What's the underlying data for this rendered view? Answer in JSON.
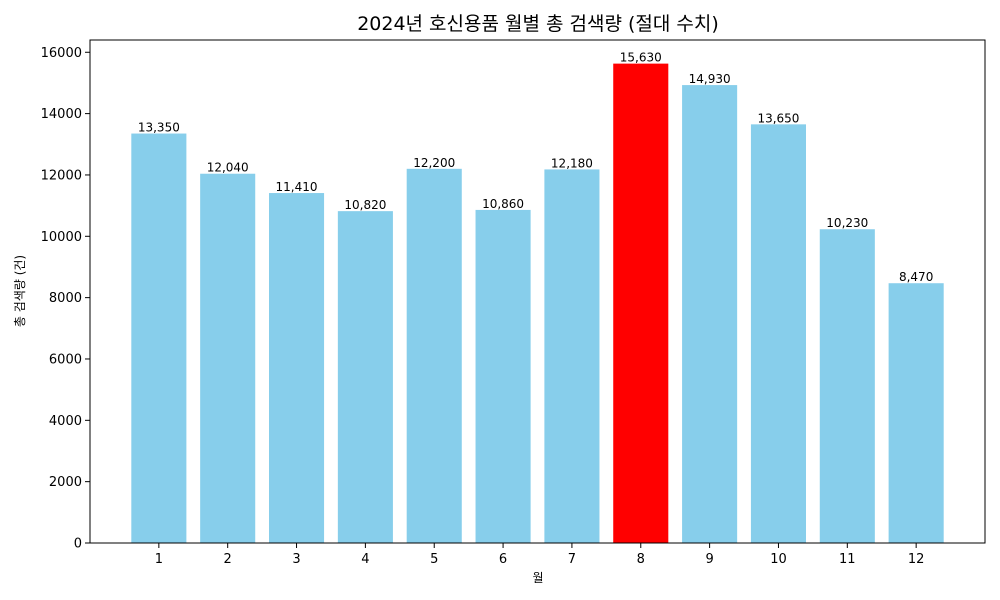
{
  "chart_data": {
    "type": "bar",
    "title": "2024년 호신용품 월별 총 검색량 (절대 수치)",
    "xlabel": "월",
    "ylabel": "총 검색량 (건)",
    "categories": [
      "1",
      "2",
      "3",
      "4",
      "5",
      "6",
      "7",
      "8",
      "9",
      "10",
      "11",
      "12"
    ],
    "values": [
      13350,
      12040,
      11410,
      10820,
      12200,
      10860,
      12180,
      15630,
      14930,
      13650,
      10230,
      8470
    ],
    "value_labels": [
      "13,350",
      "12,040",
      "11,410",
      "10,820",
      "12,200",
      "10,860",
      "12,180",
      "15,630",
      "14,930",
      "13,650",
      "10,230",
      "8,470"
    ],
    "highlight_index": 7,
    "colors": {
      "bar": "#87CEEB",
      "highlight": "#FF0000"
    },
    "ylim": [
      0,
      16400
    ],
    "yticks": [
      0,
      2000,
      4000,
      6000,
      8000,
      10000,
      12000,
      14000,
      16000
    ],
    "ytick_labels": [
      "0",
      "2000",
      "4000",
      "6000",
      "8000",
      "10000",
      "12000",
      "14000",
      "16000"
    ],
    "grid": false,
    "legend": "none"
  }
}
